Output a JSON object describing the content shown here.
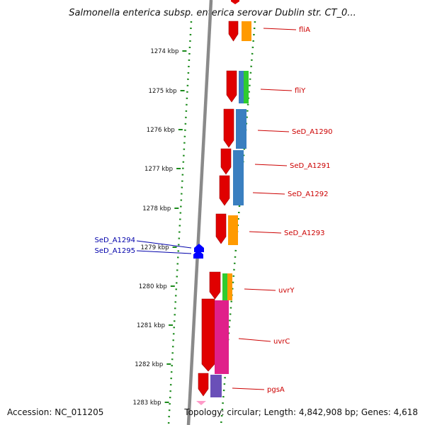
{
  "title": "Salmonella enterica subsp. enterica serovar Dublin str. CT_0...",
  "footer": {
    "accession": "Accession: NC_011205",
    "summary": "Topology: circular; Length: 4,842,908 bp; Genes: 4,618"
  },
  "ticks": [
    "1274 kbp",
    "1275 kbp",
    "1276 kbp",
    "1277 kbp",
    "1278 kbp",
    "1279 kbp",
    "1280 kbp",
    "1281 kbp",
    "1282 kbp",
    "1283 kbp"
  ],
  "genes_forward": [
    {
      "label": "fliA",
      "color": "#cc0000"
    },
    {
      "label": "fliY",
      "color": "#cc0000"
    },
    {
      "label": "SeD_A1290",
      "color": "#cc0000"
    },
    {
      "label": "SeD_A1291",
      "color": "#cc0000"
    },
    {
      "label": "SeD_A1292",
      "color": "#cc0000"
    },
    {
      "label": "SeD_A1293",
      "color": "#cc0000"
    },
    {
      "label": "uvrY",
      "color": "#cc0000"
    },
    {
      "label": "uvrC",
      "color": "#cc0000"
    },
    {
      "label": "pgsA",
      "color": "#cc0000"
    }
  ],
  "genes_reverse": [
    {
      "label": "SeD_A1294",
      "color": "#0000aa"
    },
    {
      "label": "SeD_A1295",
      "color": "#0000aa"
    }
  ],
  "colors": {
    "backbone": "#8a8a8a",
    "gene_red": "#e00000",
    "cog_orange": "#ff9a00",
    "cog_blue": "#3a7fc0",
    "cog_green": "#2fcc2f",
    "cog_magenta": "#e0208a",
    "cog_purple": "#6a50b8",
    "reverse_blue": "#0000ff",
    "dotted_green": "#1a8a1a",
    "pink": "#ff9ac8"
  }
}
